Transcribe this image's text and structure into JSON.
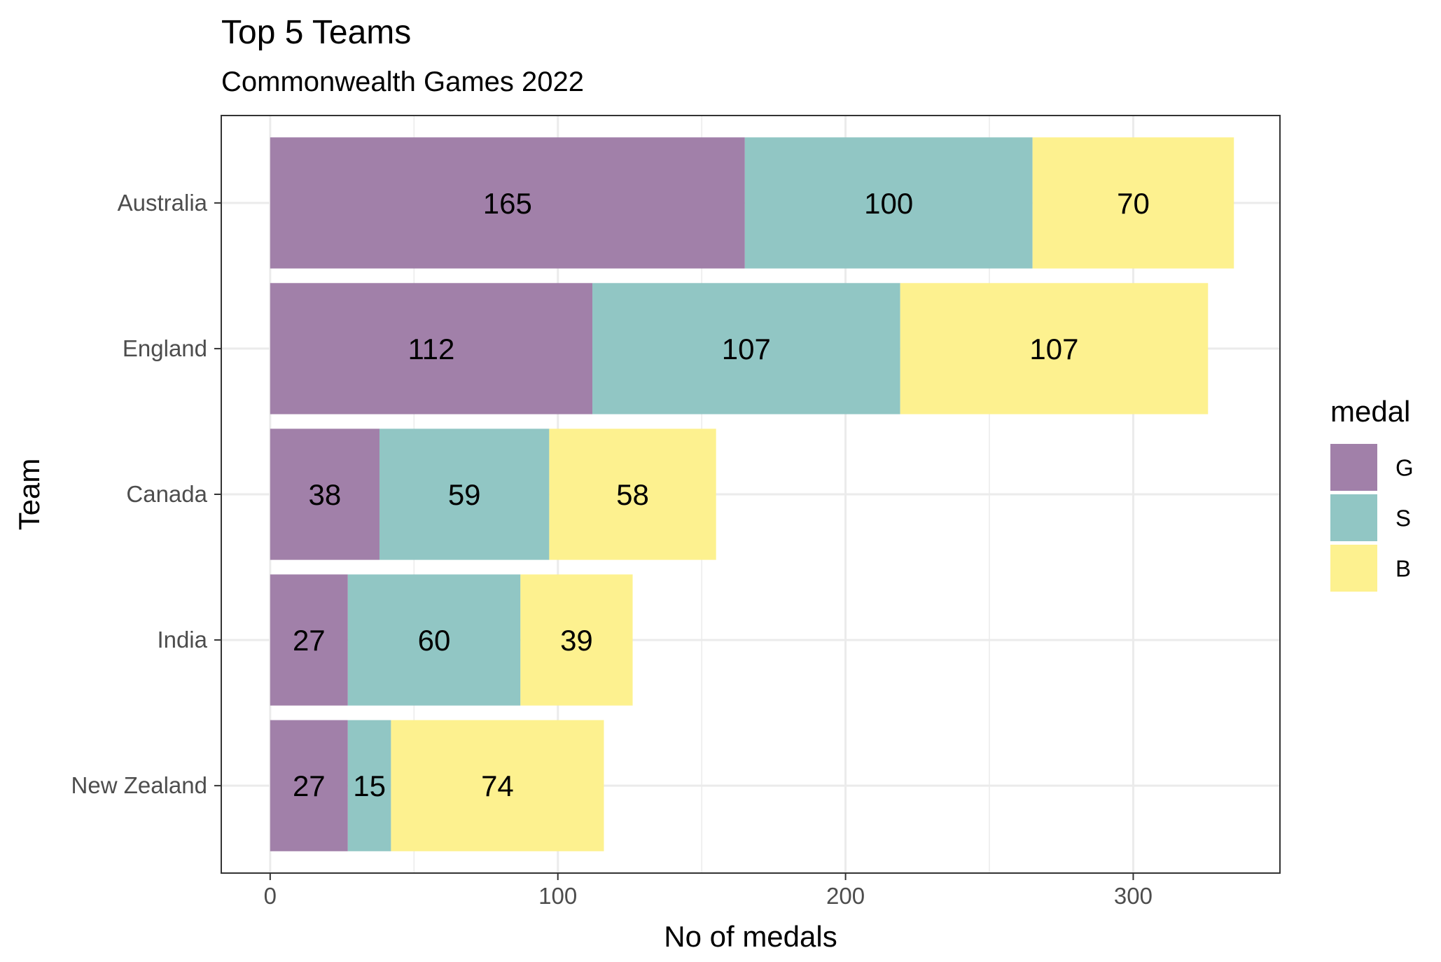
{
  "chart_data": {
    "type": "bar",
    "orientation": "horizontal",
    "stacked": true,
    "title": "Top 5 Teams",
    "subtitle": "Commonwealth Games 2022",
    "xlabel": "No of medals",
    "ylabel": "Team",
    "xlim": [
      -17,
      351
    ],
    "xticks": [
      0,
      100,
      200,
      300
    ],
    "grid": true,
    "legend": {
      "title": "medal",
      "position": "right"
    },
    "categories": [
      "Australia",
      "England",
      "Canada",
      "India",
      "New Zealand"
    ],
    "series": [
      {
        "name": "G",
        "color": "#a180a9",
        "values": [
          165,
          112,
          38,
          27,
          27
        ]
      },
      {
        "name": "S",
        "color": "#91c6c4",
        "values": [
          100,
          107,
          59,
          60,
          15
        ]
      },
      {
        "name": "B",
        "color": "#fdf18f",
        "values": [
          70,
          107,
          58,
          39,
          74
        ]
      }
    ]
  }
}
